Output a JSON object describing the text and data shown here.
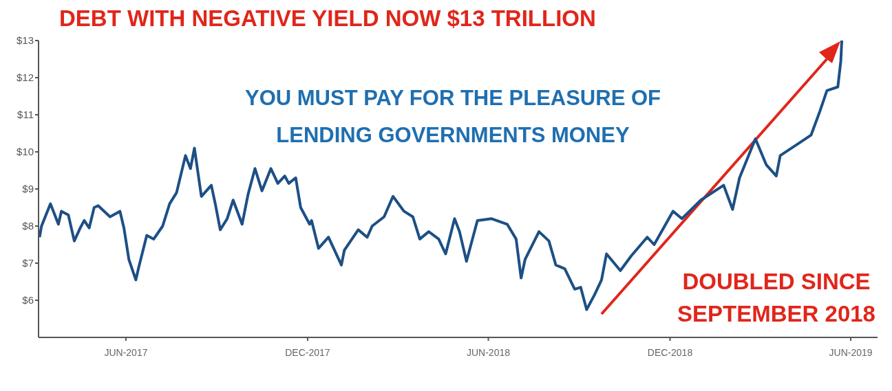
{
  "chart_data": {
    "type": "line",
    "title": "DEBT WITH NEGATIVE YIELD NOW $13 TRILLION",
    "annotations": [
      "YOU MUST PAY FOR THE PLEASURE OF LENDING GOVERNMENTS MONEY",
      "DOUBLED SINCE SEPTEMBER 2018"
    ],
    "x": [
      "2017-03-06",
      "2017-03-08",
      "2017-03-17",
      "2017-03-25",
      "2017-03-28",
      "2017-04-04",
      "2017-04-10",
      "2017-04-16",
      "2017-04-20",
      "2017-04-25",
      "2017-04-30",
      "2017-05-04",
      "2017-05-16",
      "2017-05-26",
      "2017-05-30",
      "2017-06-04",
      "2017-06-11",
      "2017-06-14",
      "2017-06-22",
      "2017-06-29",
      "2017-07-08",
      "2017-07-15",
      "2017-07-22",
      "2017-07-31",
      "2017-08-05",
      "2017-08-09",
      "2017-08-16",
      "2017-08-26",
      "2017-08-30",
      "2017-09-04",
      "2017-09-11",
      "2017-09-17",
      "2017-09-26",
      "2017-10-02",
      "2017-10-09",
      "2017-10-16",
      "2017-10-25",
      "2017-11-01",
      "2017-11-08",
      "2017-11-12",
      "2017-11-19",
      "2017-11-24",
      "2017-12-03",
      "2017-12-05",
      "2017-12-12",
      "2017-12-22",
      "2018-01-04",
      "2018-01-07",
      "2018-01-21",
      "2018-01-30",
      "2018-02-04",
      "2018-02-16",
      "2018-02-25",
      "2018-03-08",
      "2018-03-17",
      "2018-03-24",
      "2018-04-02",
      "2018-04-12",
      "2018-04-19",
      "2018-04-28",
      "2018-05-03",
      "2018-05-10",
      "2018-05-21",
      "2018-06-04",
      "2018-06-20",
      "2018-06-29",
      "2018-07-04",
      "2018-07-08",
      "2018-07-22",
      "2018-08-01",
      "2018-08-08",
      "2018-08-17",
      "2018-08-27",
      "2018-09-02",
      "2018-09-08",
      "2018-09-16",
      "2018-09-23",
      "2018-09-28",
      "2018-10-12",
      "2018-10-23",
      "2018-11-08",
      "2018-11-15",
      "2018-12-04",
      "2018-12-13",
      "2019-01-01",
      "2019-01-24",
      "2019-02-02",
      "2019-02-09",
      "2019-02-25",
      "2019-03-08",
      "2019-03-18",
      "2019-03-22",
      "2019-04-08",
      "2019-04-22",
      "2019-05-01",
      "2019-05-08",
      "2019-05-19",
      "2019-05-22",
      "2019-05-23"
    ],
    "series": [
      {
        "color": "#1d4f85",
        "values": [
          7.7,
          8.0,
          8.6,
          8.05,
          8.4,
          8.3,
          7.6,
          7.95,
          8.15,
          7.95,
          8.5,
          8.55,
          8.25,
          8.4,
          7.95,
          7.1,
          6.55,
          6.9,
          7.75,
          7.65,
          8.0,
          8.6,
          8.9,
          9.9,
          9.55,
          10.1,
          8.8,
          9.1,
          8.6,
          7.9,
          8.2,
          8.7,
          8.05,
          8.85,
          9.55,
          8.95,
          9.55,
          9.15,
          9.35,
          9.15,
          9.3,
          8.5,
          8.05,
          8.15,
          7.4,
          7.7,
          6.95,
          7.35,
          7.9,
          7.7,
          8.0,
          8.25,
          8.8,
          8.4,
          8.25,
          7.65,
          7.85,
          7.65,
          7.25,
          8.2,
          7.85,
          7.05,
          8.15,
          8.2,
          8.05,
          7.65,
          6.6,
          7.1,
          7.85,
          7.6,
          6.95,
          6.85,
          6.3,
          6.35,
          5.75,
          6.15,
          6.55,
          7.25,
          6.8,
          7.2,
          7.7,
          7.5,
          8.4,
          8.2,
          8.7,
          9.1,
          8.45,
          9.3,
          10.35,
          9.65,
          9.35,
          9.9,
          10.2,
          10.45,
          11.1,
          11.65,
          11.75,
          12.45,
          13.0
        ]
      }
    ],
    "xlim": [
      "2017-03-05",
      "2019-06-28"
    ],
    "xticks": [
      {
        "value": "2017-06-01",
        "label": "JUN-2017"
      },
      {
        "value": "2017-12-01",
        "label": "DEC-2017"
      },
      {
        "value": "2018-06-01",
        "label": "JUN-2018"
      },
      {
        "value": "2018-12-01",
        "label": "DEC-2018"
      },
      {
        "value": "2019-06-01",
        "label": "JUN-2019"
      }
    ],
    "ylim": [
      5,
      13
    ],
    "yticks": [
      {
        "value": 6,
        "label": "$6"
      },
      {
        "value": 7,
        "label": "$7"
      },
      {
        "value": 8,
        "label": "$8"
      },
      {
        "value": 9,
        "label": "$9"
      },
      {
        "value": 10,
        "label": "$10"
      },
      {
        "value": 11,
        "label": "$11"
      },
      {
        "value": 12,
        "label": "$12"
      },
      {
        "value": 13,
        "label": "$13"
      }
    ]
  }
}
